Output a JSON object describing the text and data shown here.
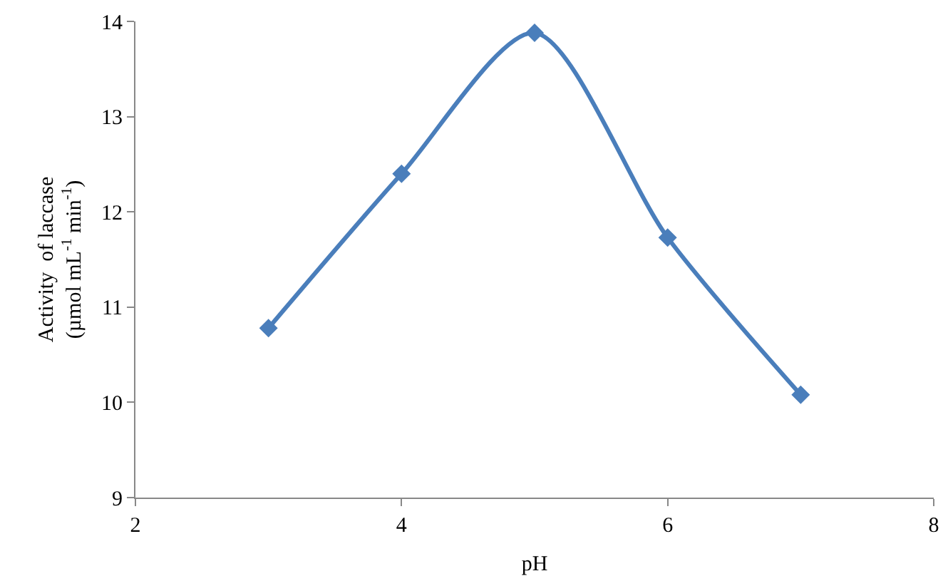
{
  "chart_data": {
    "type": "line",
    "xlabel": "pH",
    "ylabel": "Activity  of laccase\n(µmol mL$^{-1}$ min$^{-1}$)",
    "x": [
      3,
      4,
      5,
      6,
      7
    ],
    "series": [
      {
        "color": "#4a7ebb",
        "values": [
          10.78,
          12.4,
          13.88,
          11.73,
          10.08
        ]
      }
    ],
    "xlim": [
      2,
      8
    ],
    "xticks": [
      2,
      4,
      6,
      8
    ],
    "ylim": [
      9,
      14
    ],
    "yticks": [
      9,
      10,
      11,
      12,
      13,
      14
    ],
    "grid": false,
    "legend": false,
    "marker": "diamond",
    "line_style": "solid"
  }
}
